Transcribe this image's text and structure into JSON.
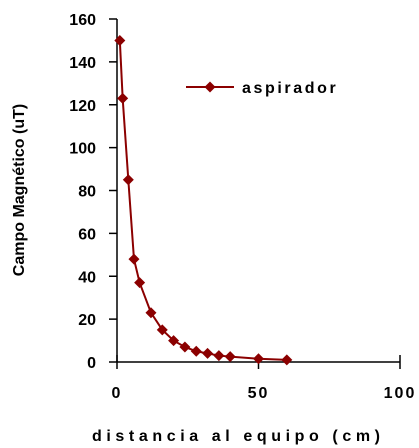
{
  "chart_data": {
    "type": "line",
    "xlabel": "distancia al equipo (cm)",
    "ylabel": "Campo Magnético (uT)",
    "xlim": [
      0,
      100
    ],
    "ylim": [
      0,
      160
    ],
    "x_ticks": [
      "0",
      "50",
      "100"
    ],
    "y_ticks": [
      "0",
      "20",
      "40",
      "60",
      "80",
      "100",
      "120",
      "140",
      "160"
    ],
    "grid": false,
    "legend_position": "top-right",
    "series": [
      {
        "name": "aspirador",
        "color": "#8b0000",
        "marker": "diamond",
        "x": [
          1,
          2,
          4,
          6,
          8,
          12,
          16,
          20,
          24,
          28,
          32,
          36,
          40,
          50,
          60
        ],
        "y": [
          150,
          123,
          85,
          48,
          37,
          23,
          15,
          10,
          7,
          5,
          4,
          3,
          2.5,
          1.5,
          1
        ]
      }
    ]
  }
}
